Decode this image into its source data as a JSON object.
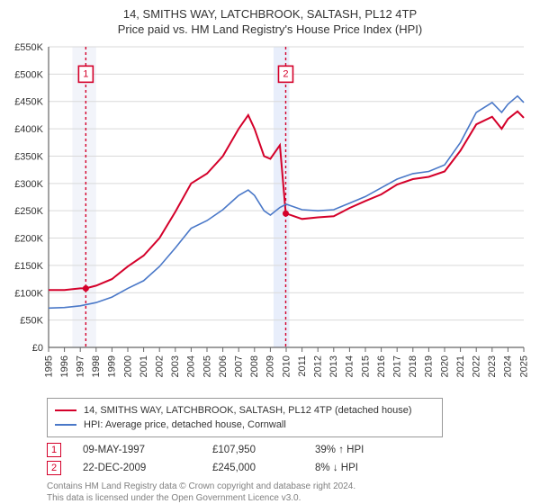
{
  "title_line1": "14, SMITHS WAY, LATCHBROOK, SALTASH, PL12 4TP",
  "title_line2": "Price paid vs. HM Land Registry's House Price Index (HPI)",
  "chart": {
    "type": "line",
    "background_color": "#ffffff",
    "grid_color": "#d9d9d9",
    "axis_color": "#666666",
    "x_years": [
      1995,
      1996,
      1997,
      1998,
      1999,
      2000,
      2001,
      2002,
      2003,
      2004,
      2005,
      2006,
      2007,
      2008,
      2009,
      2010,
      2011,
      2012,
      2013,
      2014,
      2015,
      2016,
      2017,
      2018,
      2019,
      2020,
      2021,
      2022,
      2023,
      2024,
      2025
    ],
    "y_ticks": [
      0,
      50000,
      100000,
      150000,
      200000,
      250000,
      300000,
      350000,
      400000,
      450000,
      500000,
      550000
    ],
    "y_tick_labels": [
      "£0",
      "£50K",
      "£100K",
      "£150K",
      "£200K",
      "£250K",
      "£300K",
      "£350K",
      "£400K",
      "£450K",
      "£500K",
      "£550K"
    ],
    "ylim": [
      0,
      550000
    ],
    "label_fontsize": 11,
    "bands": [
      {
        "from_year": 1996.5,
        "to_year": 1998.0,
        "color": "#f2f4fa"
      },
      {
        "from_year": 2009.2,
        "to_year": 2010.2,
        "color": "#e8eefb"
      }
    ],
    "series": [
      {
        "name": "property",
        "color": "#d4002a",
        "width": 2,
        "points": [
          [
            1995,
            105000
          ],
          [
            1996,
            105000
          ],
          [
            1997,
            108000
          ],
          [
            1997.35,
            107950
          ],
          [
            1998,
            113000
          ],
          [
            1999,
            125000
          ],
          [
            2000,
            148000
          ],
          [
            2001,
            168000
          ],
          [
            2002,
            200000
          ],
          [
            2003,
            248000
          ],
          [
            2004,
            300000
          ],
          [
            2005,
            318000
          ],
          [
            2006,
            350000
          ],
          [
            2007,
            400000
          ],
          [
            2007.6,
            425000
          ],
          [
            2008,
            400000
          ],
          [
            2008.6,
            350000
          ],
          [
            2009,
            345000
          ],
          [
            2009.6,
            370000
          ],
          [
            2009.97,
            245000
          ],
          [
            2010,
            245000
          ],
          [
            2011,
            235000
          ],
          [
            2012,
            238000
          ],
          [
            2013,
            240000
          ],
          [
            2014,
            255000
          ],
          [
            2015,
            268000
          ],
          [
            2016,
            280000
          ],
          [
            2017,
            298000
          ],
          [
            2018,
            308000
          ],
          [
            2019,
            312000
          ],
          [
            2020,
            322000
          ],
          [
            2021,
            360000
          ],
          [
            2022,
            408000
          ],
          [
            2023,
            422000
          ],
          [
            2023.6,
            400000
          ],
          [
            2024,
            418000
          ],
          [
            2024.6,
            432000
          ],
          [
            2025,
            420000
          ]
        ]
      },
      {
        "name": "hpi",
        "color": "#4a78c8",
        "width": 1.6,
        "points": [
          [
            1995,
            72000
          ],
          [
            1996,
            73000
          ],
          [
            1997,
            76000
          ],
          [
            1998,
            82000
          ],
          [
            1999,
            92000
          ],
          [
            2000,
            108000
          ],
          [
            2001,
            122000
          ],
          [
            2002,
            148000
          ],
          [
            2003,
            182000
          ],
          [
            2004,
            218000
          ],
          [
            2005,
            232000
          ],
          [
            2006,
            252000
          ],
          [
            2007,
            278000
          ],
          [
            2007.6,
            288000
          ],
          [
            2008,
            278000
          ],
          [
            2008.6,
            250000
          ],
          [
            2009,
            242000
          ],
          [
            2009.6,
            256000
          ],
          [
            2010,
            262000
          ],
          [
            2011,
            252000
          ],
          [
            2012,
            250000
          ],
          [
            2013,
            252000
          ],
          [
            2014,
            264000
          ],
          [
            2015,
            276000
          ],
          [
            2016,
            292000
          ],
          [
            2017,
            308000
          ],
          [
            2018,
            318000
          ],
          [
            2019,
            322000
          ],
          [
            2020,
            334000
          ],
          [
            2021,
            375000
          ],
          [
            2022,
            430000
          ],
          [
            2023,
            448000
          ],
          [
            2023.6,
            430000
          ],
          [
            2024,
            445000
          ],
          [
            2024.6,
            460000
          ],
          [
            2025,
            448000
          ]
        ]
      }
    ],
    "sale_markers": [
      {
        "n": "1",
        "year": 1997.35,
        "price": 107950,
        "color": "#d4002a"
      },
      {
        "n": "2",
        "year": 2009.97,
        "price": 245000,
        "color": "#d4002a"
      }
    ],
    "marker_box_top_y": 500000,
    "marker_dot_radius": 3.5
  },
  "legend": {
    "border_color": "#999999",
    "items": [
      {
        "label": "14, SMITHS WAY, LATCHBROOK, SALTASH, PL12 4TP (detached house)",
        "color": "#d4002a"
      },
      {
        "label": "HPI: Average price, detached house, Cornwall",
        "color": "#4a78c8"
      }
    ]
  },
  "sales": [
    {
      "n": "1",
      "date": "09-MAY-1997",
      "price": "£107,950",
      "hpi": "39% ↑ HPI",
      "color": "#d4002a"
    },
    {
      "n": "2",
      "date": "22-DEC-2009",
      "price": "£245,000",
      "hpi": "8% ↓ HPI",
      "color": "#d4002a"
    }
  ],
  "attribution_line1": "Contains HM Land Registry data © Crown copyright and database right 2024.",
  "attribution_line2": "This data is licensed under the Open Government Licence v3.0."
}
